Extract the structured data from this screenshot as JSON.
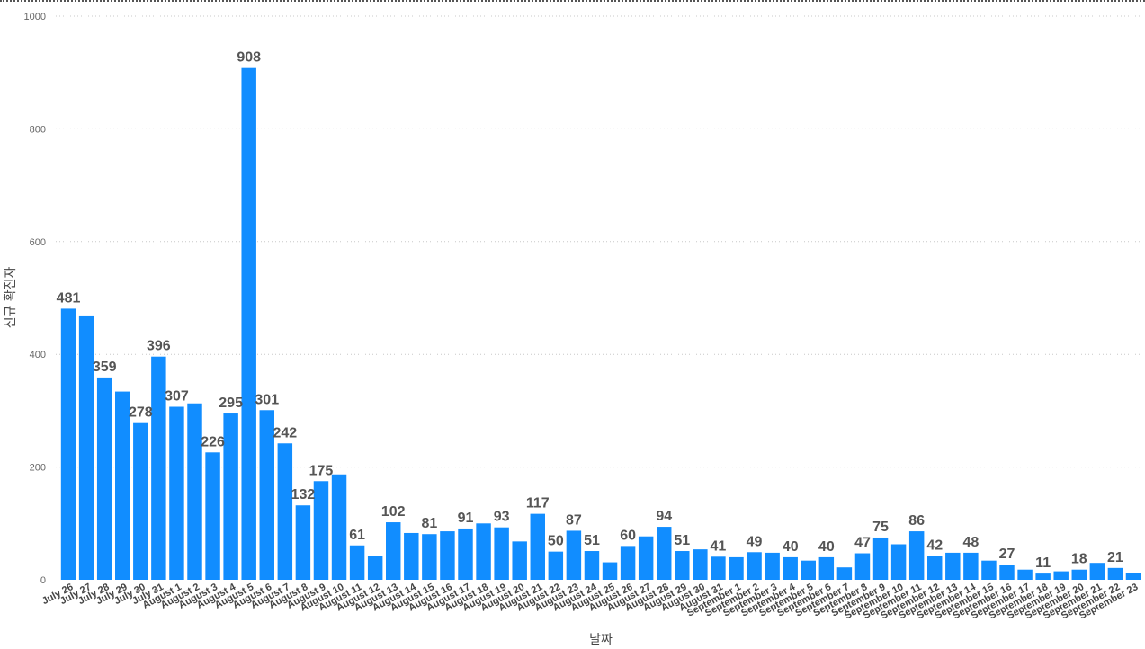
{
  "chart_data": {
    "type": "bar",
    "xlabel": "날짜",
    "ylabel": "신규 확진자",
    "ylim": [
      0,
      1000
    ],
    "yticks": [
      0,
      200,
      400,
      600,
      800,
      1000
    ],
    "grid": true,
    "color": "#118DFF",
    "categories": [
      "July 26",
      "July 27",
      "July 28",
      "July 29",
      "July 30",
      "July 31",
      "August 1",
      "August 2",
      "August 3",
      "August 4",
      "August 5",
      "August 6",
      "August 7",
      "August 8",
      "August 9",
      "August 10",
      "August 11",
      "August 12",
      "August 13",
      "August 14",
      "August 15",
      "August 16",
      "August 17",
      "August 18",
      "August 19",
      "August 20",
      "August 21",
      "August 22",
      "August 23",
      "August 24",
      "August 25",
      "August 26",
      "August 27",
      "August 28",
      "August 29",
      "August 30",
      "August 31",
      "September 1",
      "September 2",
      "September 3",
      "September 4",
      "September 5",
      "September 6",
      "September 7",
      "September 8",
      "September 9",
      "September 10",
      "September 11",
      "September 12",
      "September 13",
      "September 14",
      "September 15",
      "September 16",
      "September 17",
      "September 18",
      "September 19",
      "September 20",
      "September 21",
      "September 22",
      "September 23"
    ],
    "x_tick_labels": [
      "July 26",
      "July 27",
      "July 28",
      "July 29",
      "July 30",
      "July 31",
      "August 1",
      "August 2",
      "August 3",
      "August 4",
      "August 5",
      "August 6",
      "August 7",
      "August 8",
      "August 9",
      "August 10",
      "August 11",
      "August 12",
      "August 13",
      "August 14",
      "August 15",
      "August 16",
      "August 17",
      "August 18",
      "August 19",
      "August 20",
      "August 21",
      "August 22",
      "August 23",
      "August 24",
      "August 25",
      "August 26",
      "August 27",
      "August 28",
      "August 29",
      "August 30",
      "August 31",
      "September 1",
      "September 2",
      "September 3",
      "September 4",
      "September 5",
      "September 6",
      "September 7",
      "September 8",
      "September 9",
      "September 10",
      "September 11",
      "September 12",
      "September 13",
      "September 14",
      "September 15",
      "September 16",
      "September 17",
      "September 18",
      "September 19",
      "September 20",
      "September 21",
      "September 22",
      "September 23"
    ],
    "values": [
      481,
      469,
      359,
      334,
      278,
      396,
      307,
      313,
      226,
      295,
      908,
      301,
      242,
      132,
      175,
      187,
      61,
      42,
      102,
      83,
      81,
      86,
      91,
      100,
      93,
      68,
      117,
      50,
      87,
      51,
      31,
      60,
      77,
      94,
      51,
      54,
      41,
      40,
      49,
      48,
      40,
      34,
      40,
      22,
      47,
      75,
      63,
      86,
      42,
      48,
      48,
      34,
      27,
      18,
      11,
      15,
      18,
      30,
      21,
      12
    ],
    "data_labels": [
      "481",
      "",
      "359",
      "",
      "278",
      "396",
      "307",
      "",
      "226",
      "295",
      "908",
      "301",
      "242",
      "132",
      "175",
      "",
      "61",
      "",
      "102",
      "",
      "81",
      "",
      "91",
      "",
      "93",
      "",
      "117",
      "50",
      "87",
      "51",
      "",
      "60",
      "",
      "94",
      "51",
      "",
      "41",
      "",
      "49",
      "",
      "40",
      "",
      "40",
      "",
      "47",
      "75",
      "",
      "86",
      "42",
      "",
      "48",
      "",
      "27",
      "",
      "11",
      "",
      "18",
      "",
      "21",
      ""
    ]
  }
}
